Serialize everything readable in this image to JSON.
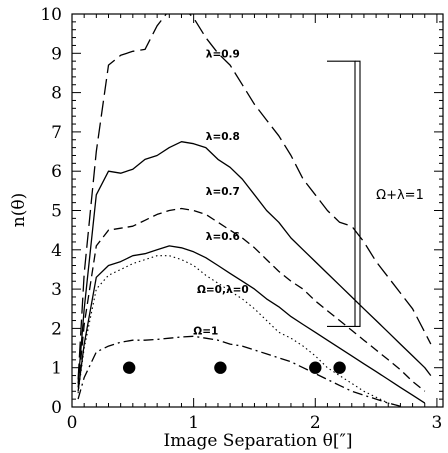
{
  "chart_data": {
    "type": "line",
    "title": "",
    "xlabel": "Image Separation θ[″]",
    "ylabel": "n(θ)",
    "xlim": [
      0,
      3.05
    ],
    "ylim": [
      0,
      10
    ],
    "xticks": [
      0,
      1,
      2,
      3
    ],
    "yticks": [
      0,
      1,
      2,
      3,
      4,
      5,
      6,
      7,
      8,
      9,
      10
    ],
    "grid": false,
    "legend": "none",
    "series": [
      {
        "name": "λ=0.9",
        "style": "long-dash",
        "label_at": [
          1.24,
          9.0
        ],
        "x": [
          0.05,
          0.1,
          0.2,
          0.3,
          0.4,
          0.5,
          0.6,
          0.7,
          0.8,
          0.85,
          0.9,
          1.0,
          1.1,
          1.2,
          1.3,
          1.4,
          1.5,
          1.6,
          1.7,
          1.8,
          1.9,
          2.0,
          2.1,
          2.2,
          2.3,
          2.4,
          2.5,
          2.6,
          2.7,
          2.8,
          2.9,
          2.95
        ],
        "y": [
          0.7,
          3.4,
          6.5,
          8.7,
          8.95,
          9.05,
          9.1,
          9.7,
          10.1,
          10.3,
          10.2,
          9.9,
          9.4,
          9.0,
          8.7,
          8.2,
          7.7,
          7.3,
          6.9,
          6.4,
          5.8,
          5.4,
          5.0,
          4.7,
          4.6,
          4.2,
          3.7,
          3.3,
          2.9,
          2.5,
          1.9,
          1.6
        ]
      },
      {
        "name": "λ=0.8",
        "style": "solid",
        "label_at": [
          1.24,
          6.9
        ],
        "x": [
          0.05,
          0.1,
          0.2,
          0.3,
          0.4,
          0.5,
          0.6,
          0.7,
          0.8,
          0.9,
          1.0,
          1.1,
          1.2,
          1.3,
          1.4,
          1.5,
          1.6,
          1.7,
          1.8,
          1.9,
          2.0,
          2.1,
          2.2,
          2.3,
          2.4,
          2.5,
          2.6,
          2.7,
          2.8,
          2.9,
          2.95
        ],
        "y": [
          0.6,
          2.5,
          5.4,
          6.0,
          5.95,
          6.05,
          6.3,
          6.4,
          6.6,
          6.75,
          6.7,
          6.6,
          6.3,
          6.1,
          5.8,
          5.4,
          5.0,
          4.7,
          4.3,
          4.0,
          3.7,
          3.4,
          3.1,
          2.8,
          2.5,
          2.2,
          1.9,
          1.6,
          1.3,
          1.0,
          0.8
        ]
      },
      {
        "name": "λ=0.7",
        "style": "dash",
        "label_at": [
          1.24,
          5.5
        ],
        "x": [
          0.05,
          0.1,
          0.2,
          0.3,
          0.4,
          0.5,
          0.6,
          0.7,
          0.8,
          0.9,
          1.0,
          1.1,
          1.2,
          1.3,
          1.4,
          1.5,
          1.6,
          1.7,
          1.8,
          1.9,
          2.0,
          2.1,
          2.2,
          2.3,
          2.4,
          2.5,
          2.6,
          2.7,
          2.8,
          2.9
        ],
        "y": [
          0.5,
          2.1,
          4.1,
          4.5,
          4.55,
          4.6,
          4.75,
          4.9,
          5.0,
          5.05,
          5.0,
          4.9,
          4.7,
          4.5,
          4.3,
          4.05,
          3.75,
          3.45,
          3.2,
          3.0,
          2.7,
          2.45,
          2.2,
          1.95,
          1.7,
          1.45,
          1.2,
          0.95,
          0.65,
          0.4
        ]
      },
      {
        "name": "λ=0.6",
        "style": "solid",
        "label_at": [
          1.24,
          4.35
        ],
        "x": [
          0.05,
          0.1,
          0.2,
          0.3,
          0.4,
          0.5,
          0.6,
          0.7,
          0.8,
          0.9,
          1.0,
          1.1,
          1.2,
          1.3,
          1.4,
          1.5,
          1.6,
          1.7,
          1.8,
          1.9,
          2.0,
          2.1,
          2.2,
          2.3,
          2.4,
          2.5,
          2.6,
          2.7,
          2.8,
          2.9
        ],
        "y": [
          0.4,
          1.6,
          3.3,
          3.6,
          3.7,
          3.85,
          3.9,
          4.0,
          4.1,
          4.05,
          3.95,
          3.8,
          3.6,
          3.4,
          3.2,
          3.0,
          2.75,
          2.55,
          2.3,
          2.1,
          1.9,
          1.7,
          1.5,
          1.3,
          1.1,
          0.9,
          0.7,
          0.5,
          0.3,
          0.1
        ]
      },
      {
        "name": "Ω=0,λ=0",
        "style": "dotted",
        "label_at": [
          1.24,
          3.0
        ],
        "x": [
          0.05,
          0.1,
          0.2,
          0.3,
          0.4,
          0.5,
          0.6,
          0.7,
          0.8,
          0.9,
          1.0,
          1.1,
          1.2,
          1.3,
          1.4,
          1.5,
          1.6,
          1.7,
          1.8,
          1.9,
          2.0,
          2.1,
          2.2,
          2.3,
          2.4,
          2.5,
          2.6,
          2.7
        ],
        "y": [
          0.35,
          1.5,
          3.0,
          3.35,
          3.5,
          3.65,
          3.75,
          3.85,
          3.85,
          3.75,
          3.6,
          3.35,
          3.15,
          2.95,
          2.75,
          2.5,
          2.2,
          1.9,
          1.75,
          1.55,
          1.3,
          1.0,
          0.8,
          0.6,
          0.4,
          0.25,
          0.1,
          0.02
        ]
      },
      {
        "name": "Ω=1",
        "style": "dash-dot",
        "label_at": [
          1.1,
          1.95
        ],
        "x": [
          0.05,
          0.1,
          0.2,
          0.3,
          0.4,
          0.5,
          0.6,
          0.7,
          0.8,
          0.9,
          1.0,
          1.1,
          1.2,
          1.3,
          1.4,
          1.5,
          1.6,
          1.7,
          1.8,
          1.9,
          2.0,
          2.1,
          2.2,
          2.3,
          2.4,
          2.5,
          2.6,
          2.7
        ],
        "y": [
          0.2,
          0.75,
          1.4,
          1.55,
          1.65,
          1.7,
          1.7,
          1.72,
          1.75,
          1.78,
          1.8,
          1.75,
          1.7,
          1.6,
          1.55,
          1.45,
          1.35,
          1.25,
          1.15,
          1.0,
          0.85,
          0.7,
          0.55,
          0.4,
          0.3,
          0.2,
          0.1,
          0.02
        ]
      }
    ],
    "observed_points": {
      "x": [
        0.47,
        1.22,
        2.0,
        2.2
      ],
      "y": [
        1,
        1,
        1,
        1
      ]
    },
    "bracket": {
      "label": "Ω+λ=1",
      "y_range": [
        2.05,
        8.8
      ]
    }
  }
}
